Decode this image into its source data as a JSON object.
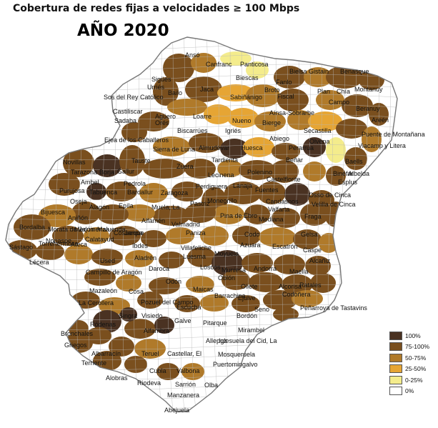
{
  "title": "Cobertura de redes fijas a velocidades ≥ 100 Mbps",
  "subtitle": "AÑO 2020",
  "legend": [
    {
      "label": "100%",
      "color": "#4a3222"
    },
    {
      "label": "75-100%",
      "color": "#7a4f1e"
    },
    {
      "label": "50-75%",
      "color": "#b07a2a"
    },
    {
      "label": "25-50%",
      "color": "#e6a534"
    },
    {
      "label": "0-25%",
      "color": "#f4ec8c"
    },
    {
      "label": "0%",
      "color": "#ffffff"
    }
  ],
  "places": [
    "Ansó",
    "Canfranc",
    "Panticosa",
    "Sigüés",
    "Bielsa",
    "Gistain",
    "Benasque",
    "Urriés",
    "Biescas",
    "Fanlo",
    "Montanuy",
    "Sos del Rey Católico",
    "Jaca",
    "Broto",
    "Plan",
    "Chía",
    "Bailo",
    "Sabiñánigo",
    "Fiscal",
    "Campo",
    "Castiliscar",
    "Sadaba",
    "Agüero",
    "Loarre",
    "Aínsa-Sobrarbe",
    "Beranuy",
    "Nueno",
    "Areén",
    "Bierge",
    "Secastilla",
    "Orés",
    "Biscarrúes",
    "Igriés",
    "Abiego",
    "Olvena",
    "Puente de Montañana",
    "Ejea de los Caballeros",
    "Sierra de Luna",
    "Almudévar",
    "Huesca",
    "Perarrua",
    "Viacamp y Litera",
    "Tardienta",
    "Baells",
    "Novillas",
    "Tauste",
    "Zuera",
    "Lecinena",
    "Polenino",
    "Beñar",
    "Binéfar",
    "Albelda",
    "Tarazona",
    "Borja",
    "Gallur",
    "Castelflorite",
    "Esplus",
    "Ambel",
    "Pedrola",
    "Perdiguera",
    "Lanaja",
    "Fuentes",
    "Osso de Cinca",
    "Purujosa",
    "Tabuenca",
    "Bardallur",
    "Zaragoza",
    "Velilla de Cinca",
    "Oseja",
    "Alagón",
    "Monegrillo",
    "Valfarta",
    "Fraga",
    "Bijuesca",
    "Epíla",
    "Muela, La",
    "Pastriz",
    "Pina de Ebro",
    "Candasnos",
    "Aniñón",
    "Alfamén",
    "Valmadrid",
    "Bordalba",
    "Morata de Jalón",
    "Cosuenda",
    "Mediana",
    "Gelsa",
    "Mequinenza",
    "Maluenda",
    "Jarque",
    "Paniza",
    "Codo",
    "Sástago",
    "Torrehermosa",
    "Ateca",
    "Villafeliche",
    "Azuara",
    "Escatrón",
    "Caspe",
    "Nonaspe",
    "Calatayud",
    "Ibdes",
    "Aladrén",
    "Luesma",
    "Moyuela",
    "Lécera",
    "Campillo de Aragón",
    "Used",
    "Daroca",
    "Loscos",
    "Muniesa",
    "Andorra",
    "Alcañiz",
    "Maella",
    "Mazaleón",
    "Odón",
    "Maicas",
    "Oblón",
    "Oliete",
    "Alcorisa",
    "Codoñera",
    "Ratales",
    "La Cerollera",
    "Pozuel del Campo",
    "Cosa",
    "Barrachina",
    "Ejulve",
    "Seno",
    "Peñarroya de Tastavins",
    "Singra",
    "Visiedo",
    "Escucha",
    "Bordón",
    "Ródenas",
    "Galve",
    "Pitarque",
    "Bronchales",
    "Alfambra",
    "Mirambel",
    "Griegos",
    "Allepuz",
    "Iglesuela del Cid, La",
    "Albarracín",
    "Teruel",
    "Castellar, El",
    "Mosqueruela",
    "Terriente",
    "Puertomingalvo",
    "Alobras",
    "Cubla",
    "Valbona",
    "Riodeva",
    "Sarrión",
    "Olba",
    "Manzanera",
    "Abejuela"
  ]
}
